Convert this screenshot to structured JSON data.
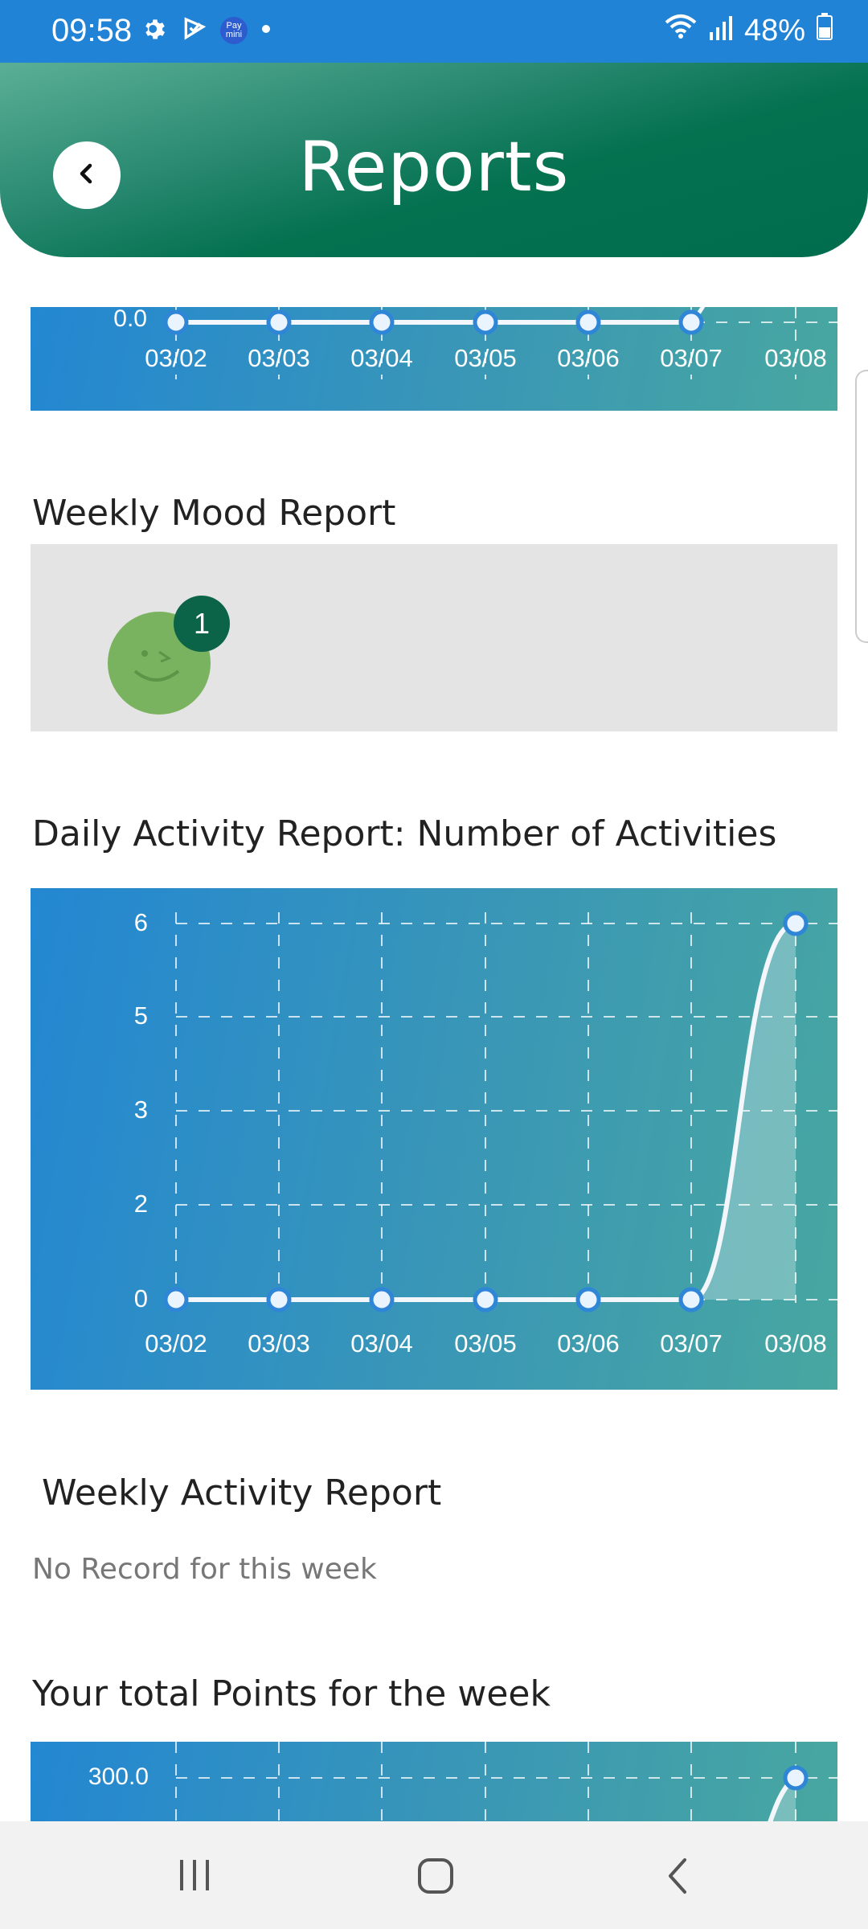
{
  "status_bar": {
    "time": "09:58",
    "pay_badge": "Pay mini",
    "battery": "48%",
    "icons": [
      "gear-icon",
      "check-flag-icon",
      "pay-mini-icon",
      "dot-icon",
      "wifi-icon",
      "signal-icon",
      "battery-icon"
    ]
  },
  "header": {
    "title": "Reports",
    "back_icon": "chevron-left-icon"
  },
  "sections": {
    "mood_title": "Weekly Mood Report",
    "mood_count": "1",
    "activity_title": "Daily Activity Report: Number of Activities",
    "weekly_activity_title": "Weekly Activity Report",
    "weekly_activity_empty": "No Record for this week",
    "points_title": "Your total Points for the week"
  },
  "chart_data": [
    {
      "type": "line",
      "x": [
        "03/02",
        "03/03",
        "03/04",
        "03/05",
        "03/06",
        "03/07",
        "03/08"
      ],
      "y_tick_labels": [
        "0.0"
      ],
      "values": [
        0,
        0,
        0,
        0,
        0,
        0,
        null
      ],
      "grid": true
    },
    {
      "type": "area",
      "x": [
        "03/02",
        "03/03",
        "03/04",
        "03/05",
        "03/06",
        "03/07",
        "03/08"
      ],
      "y_tick_labels": [
        "6",
        "5",
        "3",
        "2",
        "0"
      ],
      "values": [
        0,
        0,
        0,
        0,
        0,
        0,
        6
      ],
      "ylim": [
        0,
        6
      ],
      "grid": true
    },
    {
      "type": "area",
      "y_tick_labels": [
        "300.0"
      ],
      "values": [
        300
      ],
      "grid": true
    }
  ],
  "colors": {
    "status_bar": "#2183d6",
    "header_dark": "#006e4e",
    "chart_blue": "#2387d2",
    "chart_teal": "#48a7a0",
    "point": "#2f86d6",
    "mood_face": "#7ab35f",
    "badge": "#0c6448"
  },
  "nav": {
    "icons": [
      "recent-apps-icon",
      "home-icon",
      "back-icon"
    ]
  }
}
